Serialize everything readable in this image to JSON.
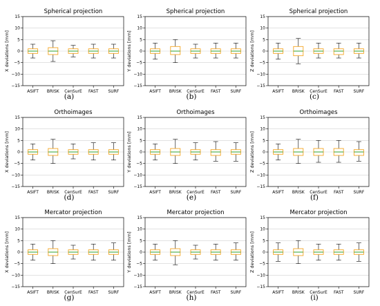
{
  "chart_data": [
    {
      "id": "a",
      "type": "boxplot",
      "title": "Spherical projection",
      "ylabel": "X deviations [mm]",
      "caption": "(a)",
      "ylim": [
        -15,
        15
      ],
      "yticks": [
        -15,
        -10,
        -5,
        0,
        5,
        10,
        15
      ],
      "grid": true,
      "categories": [
        "ASIFT",
        "BRISK",
        "CenSurE",
        "FAST",
        "SURF"
      ],
      "boxes": [
        {
          "whislo": -3,
          "q1": -1,
          "med": 0,
          "q3": 1,
          "whishi": 3
        },
        {
          "whislo": -4.5,
          "q1": -1.5,
          "med": 0,
          "q3": 1.5,
          "whishi": 4.5
        },
        {
          "whislo": -2.5,
          "q1": -1,
          "med": 0,
          "q3": 1,
          "whishi": 2.5
        },
        {
          "whislo": -3,
          "q1": -1,
          "med": 0,
          "q3": 1,
          "whishi": 3
        },
        {
          "whislo": -3,
          "q1": -1,
          "med": 0,
          "q3": 1,
          "whishi": 3
        }
      ]
    },
    {
      "id": "b",
      "type": "boxplot",
      "title": "Spherical projection",
      "ylabel": "Y deviations [mm]",
      "caption": "(b)",
      "ylim": [
        -15,
        15
      ],
      "yticks": [
        -15,
        -10,
        -5,
        0,
        5,
        10,
        15
      ],
      "grid": true,
      "categories": [
        "ASIFT",
        "BRISK",
        "CenSurE",
        "FAST",
        "SURF"
      ],
      "boxes": [
        {
          "whislo": -3.5,
          "q1": -1,
          "med": 0,
          "q3": 1,
          "whishi": 3.5
        },
        {
          "whislo": -5,
          "q1": -1.5,
          "med": 0,
          "q3": 2,
          "whishi": 5
        },
        {
          "whislo": -3,
          "q1": -1,
          "med": 0,
          "q3": 1,
          "whishi": 3
        },
        {
          "whislo": -3,
          "q1": -1,
          "med": 0,
          "q3": 1,
          "whishi": 3.5
        },
        {
          "whislo": -3,
          "q1": -1,
          "med": 0,
          "q3": 1,
          "whishi": 3.5
        }
      ]
    },
    {
      "id": "c",
      "type": "boxplot",
      "title": "Spherical projection",
      "ylabel": "Z deviations [mm]",
      "caption": "(c)",
      "ylim": [
        -15,
        15
      ],
      "yticks": [
        -15,
        -10,
        -5,
        0,
        5,
        10,
        15
      ],
      "grid": true,
      "categories": [
        "ASIFT",
        "BRISK",
        "CenSurE",
        "FAST",
        "SURF"
      ],
      "boxes": [
        {
          "whislo": -3.5,
          "q1": -1,
          "med": 0,
          "q3": 1,
          "whishi": 3.5
        },
        {
          "whislo": -5.5,
          "q1": -2,
          "med": 0,
          "q3": 2,
          "whishi": 5.5
        },
        {
          "whislo": -3,
          "q1": -1,
          "med": 0,
          "q3": 1,
          "whishi": 3.5
        },
        {
          "whislo": -3,
          "q1": -1.5,
          "med": 0,
          "q3": 1,
          "whishi": 3.5
        },
        {
          "whislo": -3,
          "q1": -1,
          "med": 0,
          "q3": 1,
          "whishi": 3.5
        }
      ]
    },
    {
      "id": "d",
      "type": "boxplot",
      "title": "Orthoimages",
      "ylabel": "X deviations [mm]",
      "caption": "(d)",
      "ylim": [
        -15,
        15
      ],
      "yticks": [
        -15,
        -10,
        -5,
        0,
        5,
        10,
        15
      ],
      "grid": true,
      "categories": [
        "ASIFT",
        "BRISK",
        "CenSurE",
        "FAST",
        "SURF"
      ],
      "boxes": [
        {
          "whislo": -3.5,
          "q1": -1,
          "med": 0,
          "q3": 1,
          "whishi": 3.5
        },
        {
          "whislo": -5,
          "q1": -1.5,
          "med": 0,
          "q3": 1.5,
          "whishi": 5.5
        },
        {
          "whislo": -3,
          "q1": -1,
          "med": 0,
          "q3": 1,
          "whishi": 3.5
        },
        {
          "whislo": -3.5,
          "q1": -1,
          "med": 0,
          "q3": 1,
          "whishi": 4
        },
        {
          "whislo": -3.5,
          "q1": -1,
          "med": 0,
          "q3": 1,
          "whishi": 4
        }
      ]
    },
    {
      "id": "e",
      "type": "boxplot",
      "title": "Orthoimages",
      "ylabel": "Y deviations [mm]",
      "caption": "(e)",
      "ylim": [
        -15,
        15
      ],
      "yticks": [
        -15,
        -10,
        -5,
        0,
        5,
        10,
        15
      ],
      "grid": true,
      "categories": [
        "ASIFT",
        "BRISK",
        "CenSurE",
        "FAST",
        "SURF"
      ],
      "boxes": [
        {
          "whislo": -3.5,
          "q1": -1,
          "med": 0,
          "q3": 1,
          "whishi": 3.5
        },
        {
          "whislo": -5,
          "q1": -1.5,
          "med": 0,
          "q3": 1.5,
          "whishi": 5.5
        },
        {
          "whislo": -3.5,
          "q1": -1,
          "med": 0,
          "q3": 1,
          "whishi": 4
        },
        {
          "whislo": -4,
          "q1": -1.5,
          "med": 0,
          "q3": 1,
          "whishi": 4.5
        },
        {
          "whislo": -4,
          "q1": -1,
          "med": 0,
          "q3": 1,
          "whishi": 4
        }
      ]
    },
    {
      "id": "f",
      "type": "boxplot",
      "title": "Orthoimages",
      "ylabel": "Z deviations [mm]",
      "caption": "(f)",
      "ylim": [
        -15,
        15
      ],
      "yticks": [
        -15,
        -10,
        -5,
        0,
        5,
        10,
        15
      ],
      "grid": true,
      "categories": [
        "ASIFT",
        "BRISK",
        "CenSurE",
        "FAST",
        "SURF"
      ],
      "boxes": [
        {
          "whislo": -3.5,
          "q1": -1,
          "med": 0,
          "q3": 1,
          "whishi": 3.5
        },
        {
          "whislo": -5,
          "q1": -1.5,
          "med": 0,
          "q3": 1.5,
          "whishi": 5.5
        },
        {
          "whislo": -4.5,
          "q1": -1.5,
          "med": 0,
          "q3": 1.5,
          "whishi": 5
        },
        {
          "whislo": -4.5,
          "q1": -1.5,
          "med": 0,
          "q3": 1.5,
          "whishi": 5
        },
        {
          "whislo": -4,
          "q1": -1.5,
          "med": 0,
          "q3": 1,
          "whishi": 4.5
        }
      ]
    },
    {
      "id": "g",
      "type": "boxplot",
      "title": "Mercator projection",
      "ylabel": "X deviations [mm]",
      "caption": "(g)",
      "ylim": [
        -15,
        15
      ],
      "yticks": [
        -15,
        -10,
        -5,
        0,
        5,
        10,
        15
      ],
      "grid": true,
      "categories": [
        "ASIFT",
        "BRISK",
        "CenSurE",
        "FAST",
        "SURF"
      ],
      "boxes": [
        {
          "whislo": -3.5,
          "q1": -1,
          "med": 0,
          "q3": 1,
          "whishi": 3.5
        },
        {
          "whislo": -5,
          "q1": -1.5,
          "med": 0,
          "q3": 1.5,
          "whishi": 5
        },
        {
          "whislo": -3,
          "q1": -1,
          "med": 0,
          "q3": 1,
          "whishi": 3
        },
        {
          "whislo": -3.5,
          "q1": -1,
          "med": 0,
          "q3": 1,
          "whishi": 3.5
        },
        {
          "whislo": -3.5,
          "q1": -1,
          "med": 0,
          "q3": 1,
          "whishi": 4
        }
      ]
    },
    {
      "id": "h",
      "type": "boxplot",
      "title": "Mercator projection",
      "ylabel": "Y deviations [mm]",
      "caption": "(h)",
      "ylim": [
        -15,
        15
      ],
      "yticks": [
        -15,
        -10,
        -5,
        0,
        5,
        10,
        15
      ],
      "grid": true,
      "categories": [
        "ASIFT",
        "BRISK",
        "CenSurE",
        "FAST",
        "SURF"
      ],
      "boxes": [
        {
          "whislo": -3.5,
          "q1": -1,
          "med": 0,
          "q3": 1,
          "whishi": 3.5
        },
        {
          "whislo": -5.5,
          "q1": -1.5,
          "med": 0,
          "q3": 1.5,
          "whishi": 5
        },
        {
          "whislo": -3,
          "q1": -1,
          "med": 0,
          "q3": 1,
          "whishi": 3
        },
        {
          "whislo": -3.5,
          "q1": -1,
          "med": 0,
          "q3": 1,
          "whishi": 3.5
        },
        {
          "whislo": -3.5,
          "q1": -1,
          "med": 0,
          "q3": 1,
          "whishi": 4
        }
      ]
    },
    {
      "id": "i",
      "type": "boxplot",
      "title": "Mercator projection",
      "ylabel": "Z deviations [mm]",
      "caption": "(i)",
      "ylim": [
        -15,
        15
      ],
      "yticks": [
        -15,
        -10,
        -5,
        0,
        5,
        10,
        15
      ],
      "grid": true,
      "categories": [
        "ASIFT",
        "BRISK",
        "CenSurE",
        "FAST",
        "SURF"
      ],
      "boxes": [
        {
          "whislo": -4,
          "q1": -1,
          "med": 0,
          "q3": 1,
          "whishi": 4
        },
        {
          "whislo": -5,
          "q1": -1.5,
          "med": 0,
          "q3": 1.5,
          "whishi": 5
        },
        {
          "whislo": -3.5,
          "q1": -1,
          "med": 0,
          "q3": 1,
          "whishi": 3.5
        },
        {
          "whislo": -3.5,
          "q1": -1,
          "med": 0,
          "q3": 1,
          "whishi": 3.5
        },
        {
          "whislo": -4,
          "q1": -1,
          "med": 0,
          "q3": 1,
          "whishi": 4
        }
      ]
    }
  ],
  "colors": {
    "box": "#f5a623",
    "median": "#2ca02c",
    "whisker": "#000000",
    "grid": "#d0d0d0",
    "axis": "#000000"
  }
}
